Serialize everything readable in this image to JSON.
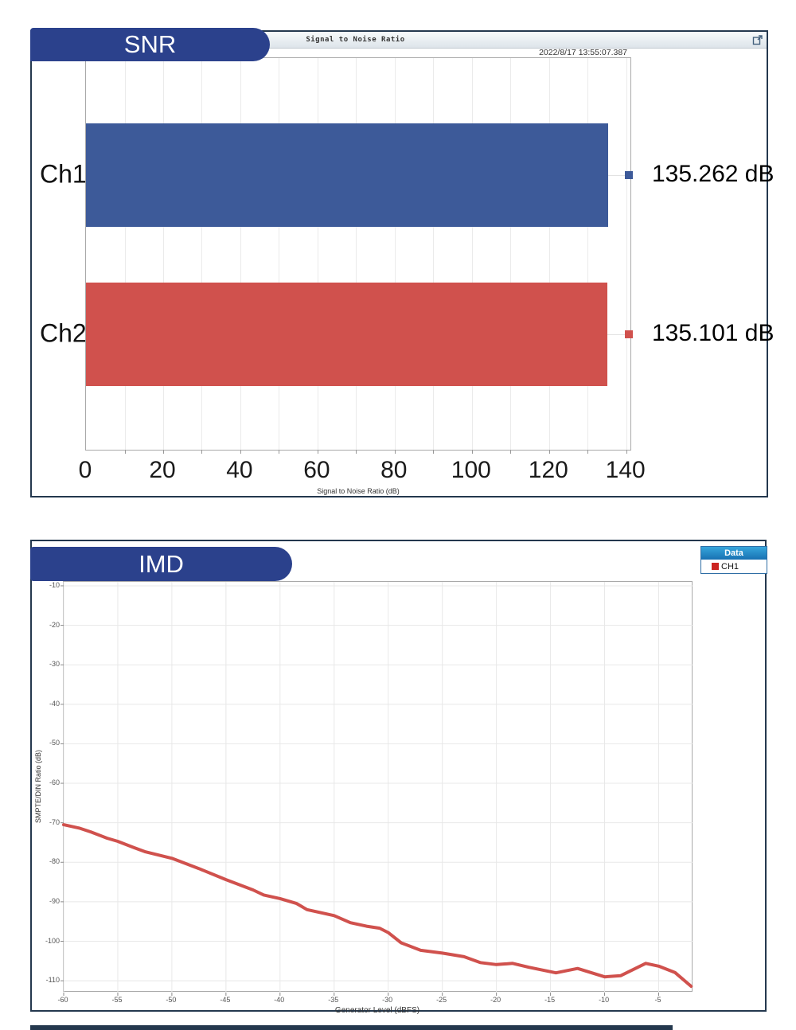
{
  "colors": {
    "pill_bg": "#2b418c",
    "panel_border": "#24384e",
    "bar_blue": "#3d5a99",
    "bar_red": "#d0514d",
    "line_red": "#d0514d",
    "legend_header_top": "#37a6dc",
    "legend_header_bottom": "#1871b2",
    "legend_swatch_red": "#cc2522",
    "gridline": "#e8e8e8"
  },
  "snr_panel": {
    "pill_label": "SNR",
    "window_title": "Signal to Noise Ratio",
    "timestamp": "2022/8/17 13:55:07.387",
    "popout_icon": "popout-icon"
  },
  "imd_panel": {
    "pill_label": "IMD",
    "legend": {
      "header": "Data",
      "items": [
        {
          "label": "CH1",
          "color": "#cc2522"
        }
      ]
    }
  },
  "chart_data": [
    {
      "id": "snr",
      "type": "bar",
      "orientation": "horizontal",
      "title": "Signal to Noise Ratio",
      "categories": [
        "Ch1",
        "Ch2"
      ],
      "values": [
        135.262,
        135.101
      ],
      "value_labels": [
        "135.262 dB",
        "135.101 dB"
      ],
      "bar_colors": [
        "#3d5a99",
        "#d0514d"
      ],
      "xlabel": "Signal to Noise Ratio (dB)",
      "xlim": [
        0,
        141.5
      ],
      "xticks": [
        0,
        20,
        40,
        60,
        80,
        100,
        120,
        140
      ],
      "grid_step": 10,
      "grid": true,
      "legend_position": "none"
    },
    {
      "id": "imd",
      "type": "line",
      "xlabel": "Generator Level (dBFS)",
      "ylabel": "SMPTE/DIN Ratio (dB)",
      "xlim": [
        -60,
        -1.8
      ],
      "ylim": [
        -113,
        -9
      ],
      "xticks": [
        -60,
        -55,
        -50,
        -45,
        -40,
        -35,
        -30,
        -25,
        -20,
        -15,
        -10,
        -5
      ],
      "yticks": [
        -10,
        -20,
        -30,
        -40,
        -50,
        -60,
        -70,
        -80,
        -90,
        -100,
        -110
      ],
      "grid": true,
      "legend_position": "top-right",
      "series": [
        {
          "name": "CH1",
          "color": "#d0514d",
          "points": [
            [
              -60,
              -70.5
            ],
            [
              -58.5,
              -71.4
            ],
            [
              -57.5,
              -72.3
            ],
            [
              -56,
              -73.9
            ],
            [
              -55,
              -74.7
            ],
            [
              -53.5,
              -76.3
            ],
            [
              -52.5,
              -77.3
            ],
            [
              -50,
              -79.0
            ],
            [
              -47.5,
              -81.6
            ],
            [
              -45,
              -84.4
            ],
            [
              -42.5,
              -87.0
            ],
            [
              -41.5,
              -88.3
            ],
            [
              -40,
              -89.2
            ],
            [
              -38.5,
              -90.4
            ],
            [
              -37.5,
              -92.0
            ],
            [
              -35,
              -93.5
            ],
            [
              -33.5,
              -95.3
            ],
            [
              -32,
              -96.2
            ],
            [
              -30.8,
              -96.7
            ],
            [
              -30,
              -97.8
            ],
            [
              -28.8,
              -100.4
            ],
            [
              -27,
              -102.3
            ],
            [
              -25,
              -103.0
            ],
            [
              -23,
              -103.9
            ],
            [
              -21.5,
              -105.4
            ],
            [
              -20,
              -105.9
            ],
            [
              -18.5,
              -105.6
            ],
            [
              -17,
              -106.6
            ],
            [
              -14.5,
              -108.0
            ],
            [
              -12.5,
              -106.9
            ],
            [
              -10,
              -109.0
            ],
            [
              -8.5,
              -108.7
            ],
            [
              -6.2,
              -105.6
            ],
            [
              -5,
              -106.3
            ],
            [
              -3.5,
              -107.9
            ],
            [
              -2,
              -111.4
            ]
          ]
        }
      ]
    }
  ]
}
